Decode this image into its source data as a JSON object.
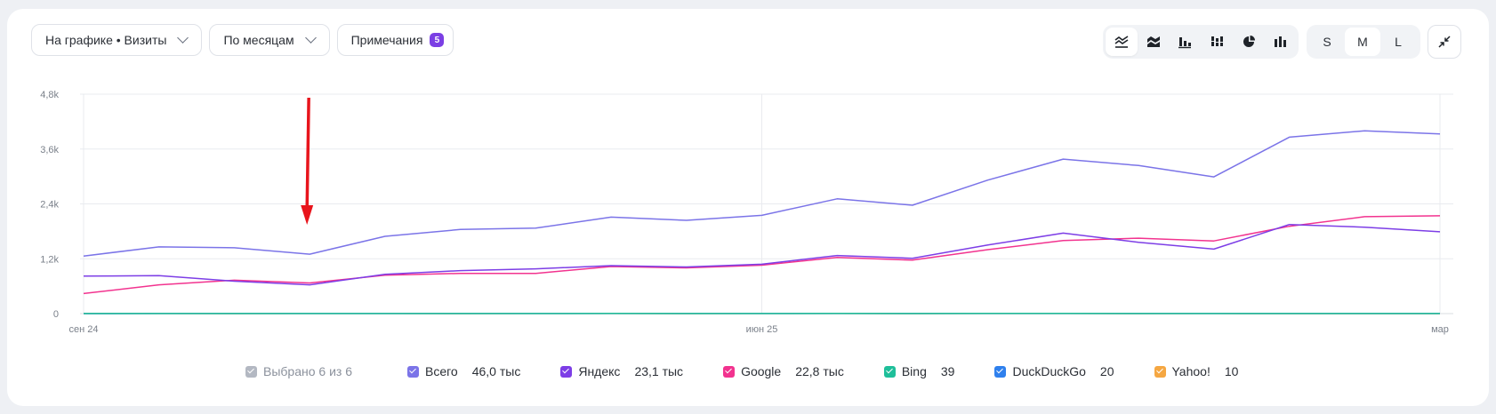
{
  "toolbar": {
    "metric_label": "На графике • Визиты",
    "grouping_label": "По месяцам",
    "notes_label": "Примечания",
    "notes_count": "5"
  },
  "chart_types": [
    {
      "name": "line-chart-icon",
      "active": true
    },
    {
      "name": "stacked-area-icon",
      "active": false
    },
    {
      "name": "bar-chart-icon",
      "active": false
    },
    {
      "name": "stacked-bar-icon",
      "active": false
    },
    {
      "name": "pie-chart-icon",
      "active": false
    },
    {
      "name": "column-chart-icon",
      "active": false
    }
  ],
  "sizes": {
    "s": "S",
    "m": "M",
    "l": "L",
    "active": "M"
  },
  "legend": {
    "selected_label": "Выбрано 6 из 6",
    "items": [
      {
        "name": "Всего",
        "value": "46,0 тыс",
        "color": "#7b74e8"
      },
      {
        "name": "Яндекс",
        "value": "23,1 тыс",
        "color": "#7d3ee6"
      },
      {
        "name": "Google",
        "value": "22,8 тыс",
        "color": "#f2338f"
      },
      {
        "name": "Bing",
        "value": "39",
        "color": "#1fbf9a"
      },
      {
        "name": "DuckDuckGo",
        "value": "20",
        "color": "#2f80ed"
      },
      {
        "name": "Yahoo!",
        "value": "10",
        "color": "#f5a742"
      }
    ]
  },
  "chart_data": {
    "type": "line",
    "x": [
      "2024-09",
      "2024-10",
      "2024-11",
      "2024-12",
      "2025-01",
      "2025-02",
      "2025-03",
      "2025-04",
      "2025-05",
      "2025-06",
      "2025-07",
      "2025-08",
      "2025-09",
      "2025-10",
      "2025-11",
      "2025-12",
      "2026-01",
      "2026-02",
      "2026-03"
    ],
    "x_tick_labels": [
      {
        "at": "2024-09",
        "label": "сен 24"
      },
      {
        "at": "2025-06",
        "label": "июн 25"
      },
      {
        "at": "2026-03",
        "label": "мар"
      }
    ],
    "y_ticks": [
      "0",
      "1,2k",
      "2,4k",
      "3,6k",
      "4,8k"
    ],
    "ylim": [
      0,
      4800
    ],
    "grid": true,
    "series": [
      {
        "name": "Всего",
        "color": "#7b74e8",
        "values": [
          1260,
          1460,
          1440,
          1300,
          1690,
          1840,
          1870,
          2110,
          2040,
          2150,
          2510,
          2370,
          2920,
          3380,
          3240,
          2990,
          3860,
          4000,
          3930
        ]
      },
      {
        "name": "Яндекс",
        "color": "#7d3ee6",
        "values": [
          820,
          830,
          710,
          630,
          860,
          940,
          980,
          1050,
          1020,
          1080,
          1270,
          1210,
          1500,
          1760,
          1560,
          1410,
          1950,
          1890,
          1790
        ]
      },
      {
        "name": "Google",
        "color": "#f2338f",
        "values": [
          440,
          630,
          730,
          670,
          840,
          880,
          880,
          1030,
          1000,
          1060,
          1230,
          1170,
          1400,
          1600,
          1650,
          1590,
          1910,
          2120,
          2140
        ]
      },
      {
        "name": "Bing",
        "color": "#1fbf9a",
        "values": [
          1,
          1,
          1,
          1,
          2,
          2,
          2,
          3,
          2,
          2,
          3,
          2,
          4,
          3,
          2,
          2,
          2,
          2,
          1
        ]
      },
      {
        "name": "DuckDuckGo",
        "color": "#2f80ed",
        "values": [
          0,
          1,
          1,
          1,
          1,
          1,
          1,
          1,
          1,
          1,
          2,
          1,
          2,
          1,
          1,
          1,
          2,
          1,
          1
        ]
      },
      {
        "name": "Yahoo!",
        "color": "#f5a742",
        "values": [
          1,
          1,
          0,
          1,
          1,
          0,
          1,
          1,
          0,
          1,
          1,
          0,
          1,
          1,
          0,
          1,
          0,
          0,
          0
        ]
      }
    ],
    "annotation": {
      "type": "arrow",
      "color": "#e8141c",
      "at_x": "2024-12"
    }
  }
}
